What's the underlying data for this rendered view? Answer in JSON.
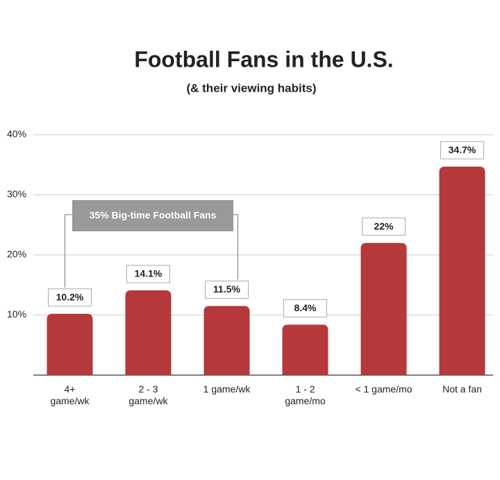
{
  "chart_data": {
    "type": "bar",
    "title": "Football Fans in the U.S.",
    "subtitle": "(& their viewing habits)",
    "categories": [
      "4+\ngame/wk",
      "2 - 3\ngame/wk",
      "1 game/wk",
      "1 - 2\ngame/mo",
      "< 1 game/mo",
      "Not a fan"
    ],
    "values": [
      10.2,
      14.1,
      11.5,
      8.4,
      22,
      34.7
    ],
    "value_labels": [
      "10.2%",
      "14.1%",
      "11.5%",
      "8.4%",
      "22%",
      "34.7%"
    ],
    "color": "#b5383a",
    "ylim": [
      0,
      40
    ],
    "yticks": [
      {
        "value": 10,
        "label": "10%"
      },
      {
        "value": 20,
        "label": "20%"
      },
      {
        "value": 30,
        "label": "30%"
      },
      {
        "value": 40,
        "label": "40%"
      }
    ],
    "grid": true,
    "annotation": "35% Big-time Football Fans"
  }
}
